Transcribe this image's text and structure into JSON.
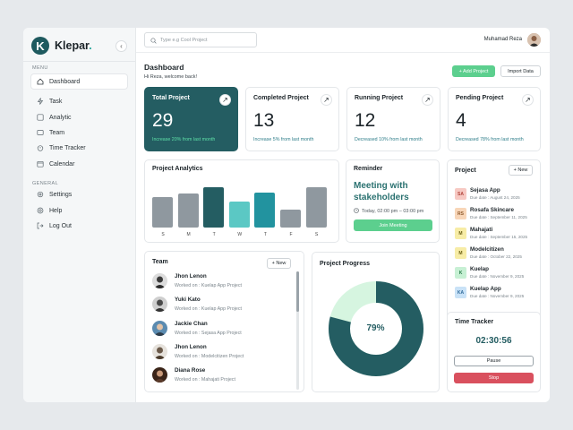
{
  "brand": {
    "logo_letter": "K",
    "name": "Klepar",
    "name_dot": "."
  },
  "sidebar": {
    "menu_label": "MENU",
    "items": [
      {
        "label": "Dashboard",
        "icon": "home-icon"
      },
      {
        "label": "Task",
        "icon": "lightning-icon"
      },
      {
        "label": "Analytic",
        "icon": "chart-icon"
      },
      {
        "label": "Team",
        "icon": "team-icon"
      },
      {
        "label": "Time Tracker",
        "icon": "stopwatch-icon"
      },
      {
        "label": "Calendar",
        "icon": "calendar-icon"
      }
    ],
    "general_label": "GENERAL",
    "general_items": [
      {
        "label": "Settings",
        "icon": "gear-icon"
      },
      {
        "label": "Help",
        "icon": "help-icon"
      },
      {
        "label": "Log Out",
        "icon": "logout-icon"
      }
    ]
  },
  "topbar": {
    "search_placeholder": "Type e.g Cool Project",
    "user_name": "Muhamad Reza"
  },
  "header": {
    "title": "Dashboard",
    "welcome": "Hi Reza, welcome back!",
    "add_project": "+ Add Project",
    "import_data": "Import Data"
  },
  "stats": [
    {
      "title": "Total Project",
      "value": "29",
      "sub": "Increase 20% from last month"
    },
    {
      "title": "Completed Project",
      "value": "13",
      "sub": "Increase 5% from last month"
    },
    {
      "title": "Running Project",
      "value": "12",
      "sub": "Decreased 10% from last month"
    },
    {
      "title": "Pending Project",
      "value": "4",
      "sub": "Decreased 78% from last month"
    }
  ],
  "analytics": {
    "title": "Project Analytics",
    "days": [
      "S",
      "M",
      "T",
      "W",
      "T",
      "F",
      "S"
    ],
    "values": [
      0.72,
      0.8,
      0.95,
      0.62,
      0.82,
      0.42,
      0.95
    ],
    "colors": [
      "#8f989f",
      "#8f989f",
      "#245d62",
      "#5bc8c4",
      "#22939f",
      "#8f989f",
      "#8f989f"
    ]
  },
  "reminder": {
    "title": "Reminder",
    "line1": "Meeting with",
    "line2": "stakeholders",
    "time": "Today, 02:00 pm – 03:00 pm",
    "join": "Join Meeting"
  },
  "projects": {
    "title": "Project",
    "new_label": "+ New",
    "items": [
      {
        "badge": "SA",
        "bg": "#f7c9c3",
        "fg": "#b0433a",
        "name": "Sejasa App",
        "date": "Due date : August 24, 2025"
      },
      {
        "badge": "RS",
        "bg": "#f8d6b8",
        "fg": "#8f5a2c",
        "name": "Rosafa Skincare",
        "date": "Due date : September 11, 2025"
      },
      {
        "badge": "M",
        "bg": "#f7eca6",
        "fg": "#6e6216",
        "name": "Mahajati",
        "date": "Due date : September 15, 2025"
      },
      {
        "badge": "M",
        "bg": "#f7eca6",
        "fg": "#6e6216",
        "name": "Modelcitizen",
        "date": "Due date : October 22, 2025"
      },
      {
        "badge": "K",
        "bg": "#c7f0d4",
        "fg": "#247a46",
        "name": "Kuelap",
        "date": "Due date : November 9, 2025"
      },
      {
        "badge": "KA",
        "bg": "#c9e2f7",
        "fg": "#2f6a9b",
        "name": "Kuelap App",
        "date": "Due date : November 9, 2025"
      }
    ]
  },
  "team": {
    "title": "Team",
    "new_label": "+ New",
    "members": [
      {
        "name": "Jhon Lenon",
        "work": "Worked on : Kuelap App Project",
        "avatar": "#3a3a3a"
      },
      {
        "name": "Yuki Kato",
        "work": "Worked on : Kuelap App Project",
        "avatar": "#4a4a4a"
      },
      {
        "name": "Jackie Chan",
        "work": "Worked on : Sejasa App Project",
        "avatar": "#2f3d4a"
      },
      {
        "name": "Jhon Lenon",
        "work": "Worked on : Modelcitizen Project",
        "avatar": "#6b5a4a"
      },
      {
        "name": "Diana Rose",
        "work": "Worked on : Mahajati Project",
        "avatar": "#5a3a2a"
      }
    ]
  },
  "progress": {
    "title": "Project Progress",
    "percent": 79,
    "label": "79%",
    "fill_color": "#245d62",
    "track_color": "#d6f5e0"
  },
  "tracker": {
    "title": "Time Tracker",
    "time": "02:30:56",
    "pause": "Pause",
    "stop": "Stop"
  }
}
